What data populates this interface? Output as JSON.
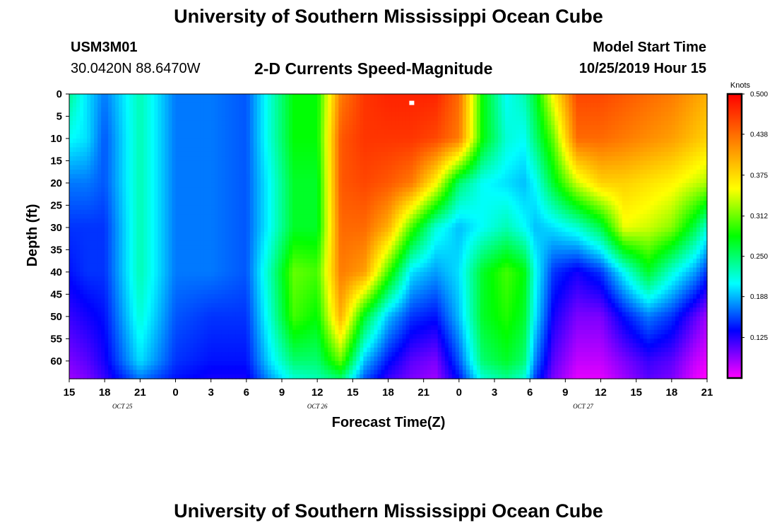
{
  "header": {
    "title": "University of Southern Mississippi Ocean Cube",
    "station": "USM3M01",
    "coordinates": "30.0420N 88.6470W",
    "subtitle": "2-D Currents Speed-Magnitude",
    "model_start_label": "Model Start Time",
    "model_start_value": "10/25/2019 Hour 15"
  },
  "footer": {
    "title": "University of Southern Mississippi Ocean Cube"
  },
  "chart_data": {
    "type": "heatmap",
    "title": "2-D Currents Speed-Magnitude",
    "xlabel": "Forecast Time(Z)",
    "ylabel": "Depth (ft)",
    "x_ticks": [
      "15",
      "18",
      "21",
      "0",
      "3",
      "6",
      "9",
      "12",
      "15",
      "18",
      "21",
      "0",
      "3",
      "6",
      "9",
      "12",
      "15",
      "18",
      "21"
    ],
    "x_range_hours": [
      0,
      54
    ],
    "date_labels": [
      {
        "text": "OCT 25",
        "hour": 4.5
      },
      {
        "text": "OCT 26",
        "hour": 21
      },
      {
        "text": "OCT 27",
        "hour": 43.5
      }
    ],
    "y_ticks": [
      0,
      5,
      10,
      15,
      20,
      25,
      30,
      35,
      40,
      45,
      50,
      55,
      60
    ],
    "y_range": [
      0,
      64
    ],
    "y_inverted": true,
    "colorbar": {
      "title": "Knots",
      "min": 0.0625,
      "max": 0.5,
      "ticks": [
        "0.500",
        "0.438",
        "0.375",
        "0.312",
        "0.250",
        "0.188",
        "0.125"
      ],
      "tick_values": [
        0.5,
        0.438,
        0.375,
        0.312,
        0.25,
        0.188,
        0.125
      ],
      "colors": [
        "#ff00ff",
        "#0000ff",
        "#00ffff",
        "#00ff00",
        "#ffff00",
        "#ff8000",
        "#ff0000"
      ]
    },
    "marker": {
      "hour": 29,
      "depth": 2
    },
    "field_description": "Approximate speed (knots) as function of forecast hour and depth",
    "field": {
      "hours": [
        0,
        1.5,
        3,
        6,
        9,
        12,
        15,
        17,
        19,
        21,
        23,
        25,
        27,
        29,
        31,
        33,
        35,
        37,
        38.5,
        39.5,
        41,
        43,
        45,
        47,
        49,
        51,
        53,
        54
      ],
      "depths": [
        0,
        10,
        20,
        30,
        40,
        50,
        60,
        64
      ],
      "rows": [
        [
          0.24,
          0.2,
          0.17,
          0.23,
          0.17,
          0.17,
          0.16,
          0.22,
          0.28,
          0.28,
          0.43,
          0.47,
          0.48,
          0.48,
          0.48,
          0.44,
          0.28,
          0.21,
          0.23,
          0.27,
          0.36,
          0.46,
          0.46,
          0.45,
          0.44,
          0.43,
          0.41,
          0.4
        ],
        [
          0.21,
          0.2,
          0.16,
          0.23,
          0.17,
          0.17,
          0.16,
          0.22,
          0.28,
          0.28,
          0.45,
          0.47,
          0.47,
          0.47,
          0.46,
          0.43,
          0.28,
          0.22,
          0.21,
          0.25,
          0.31,
          0.44,
          0.44,
          0.43,
          0.42,
          0.41,
          0.39,
          0.38
        ],
        [
          0.17,
          0.17,
          0.16,
          0.23,
          0.17,
          0.17,
          0.16,
          0.21,
          0.27,
          0.27,
          0.45,
          0.46,
          0.45,
          0.43,
          0.36,
          0.25,
          0.21,
          0.2,
          0.19,
          0.21,
          0.27,
          0.34,
          0.38,
          0.38,
          0.37,
          0.36,
          0.34,
          0.33
        ],
        [
          0.15,
          0.15,
          0.15,
          0.23,
          0.17,
          0.17,
          0.16,
          0.21,
          0.27,
          0.27,
          0.44,
          0.44,
          0.4,
          0.3,
          0.22,
          0.19,
          0.21,
          0.23,
          0.21,
          0.19,
          0.2,
          0.22,
          0.26,
          0.35,
          0.34,
          0.32,
          0.26,
          0.22
        ],
        [
          0.14,
          0.15,
          0.15,
          0.23,
          0.17,
          0.17,
          0.16,
          0.23,
          0.31,
          0.3,
          0.43,
          0.41,
          0.3,
          0.2,
          0.18,
          0.2,
          0.27,
          0.3,
          0.28,
          0.21,
          0.15,
          0.13,
          0.15,
          0.21,
          0.27,
          0.22,
          0.18,
          0.15
        ],
        [
          0.12,
          0.13,
          0.14,
          0.22,
          0.16,
          0.15,
          0.15,
          0.22,
          0.3,
          0.28,
          0.4,
          0.27,
          0.19,
          0.15,
          0.14,
          0.19,
          0.27,
          0.29,
          0.27,
          0.2,
          0.13,
          0.1,
          0.1,
          0.14,
          0.17,
          0.15,
          0.11,
          0.09
        ],
        [
          0.1,
          0.11,
          0.13,
          0.2,
          0.15,
          0.14,
          0.14,
          0.2,
          0.25,
          0.25,
          0.31,
          0.19,
          0.14,
          0.11,
          0.1,
          0.16,
          0.25,
          0.27,
          0.25,
          0.17,
          0.11,
          0.08,
          0.08,
          0.1,
          0.12,
          0.11,
          0.08,
          0.07
        ],
        [
          0.09,
          0.1,
          0.12,
          0.17,
          0.14,
          0.13,
          0.13,
          0.18,
          0.22,
          0.23,
          0.25,
          0.16,
          0.12,
          0.1,
          0.09,
          0.14,
          0.22,
          0.24,
          0.22,
          0.15,
          0.1,
          0.07,
          0.07,
          0.09,
          0.11,
          0.1,
          0.07,
          0.06
        ]
      ]
    }
  }
}
